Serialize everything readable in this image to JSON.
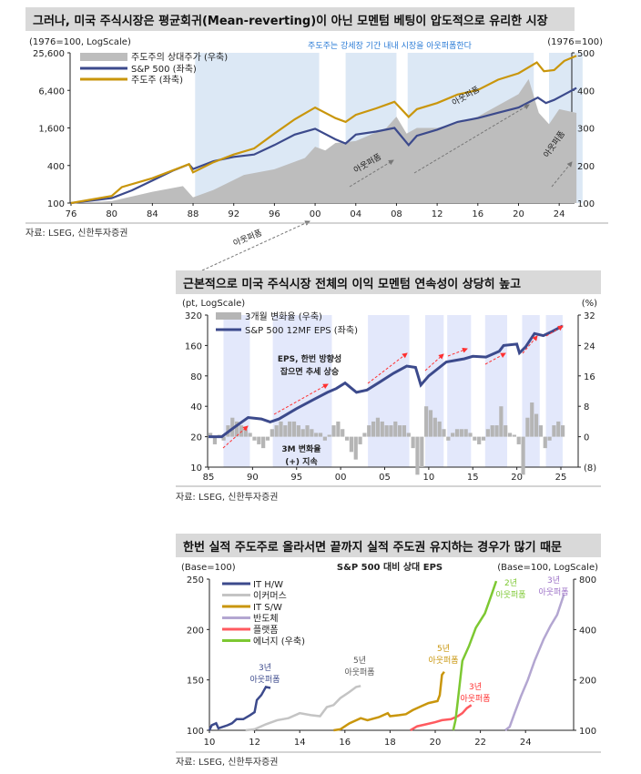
{
  "footer_source": "자료: LSEG, 신한투자증권",
  "chart_data": [
    {
      "type": "line",
      "title": "그러나, 미국 주식시장은 평균회귀(Mean-reverting)이 아닌 모멘텀 베팅이 압도적으로 유리한 시장",
      "left_unit": "(1976=100, LogScale)",
      "right_unit": "(1976=100)",
      "subtitle": "주도주는 강세장 기간 내내 시장을 아웃퍼폼한다",
      "left_ticks": [
        "100",
        "400",
        "1,600",
        "6,400",
        "25,600"
      ],
      "right_ticks": [
        "100",
        "200",
        "300",
        "400",
        "500"
      ],
      "x_ticks": [
        "76",
        "80",
        "84",
        "88",
        "92",
        "96",
        "00",
        "04",
        "08",
        "12",
        "16",
        "20",
        "24"
      ],
      "ylim_left": [
        100,
        25600
      ],
      "ylim_right": [
        100,
        500
      ],
      "xlim": [
        1976,
        2026.5
      ],
      "annotation": "아웃퍼폼",
      "shaded_periods": [
        [
          1988.2,
          2000.4
        ],
        [
          2003.0,
          2008.0
        ],
        [
          2009.1,
          2021.5
        ],
        [
          2023.0,
          2026.3
        ]
      ],
      "series": [
        {
          "name": "주도주의 상대주가 (우축)",
          "axis": "right",
          "kind": "area",
          "color": "#bdbdbd",
          "x": [
            1976,
            1980,
            1984,
            1987,
            1988,
            1990,
            1993,
            1996,
            1999,
            2000,
            2001,
            2002,
            2004,
            2007,
            2008,
            2009,
            2010,
            2012,
            2016,
            2018,
            2020,
            2021,
            2022,
            2023,
            2024,
            2025.7
          ],
          "y": [
            100,
            105,
            130,
            145,
            115,
            135,
            175,
            190,
            220,
            250,
            240,
            260,
            265,
            300,
            330,
            285,
            300,
            300,
            330,
            360,
            390,
            430,
            340,
            310,
            350,
            340
          ]
        },
        {
          "name": "S&P 500 (좌축)",
          "axis": "left",
          "kind": "line",
          "color": "#3c4a8c",
          "x": [
            1976,
            1980,
            1982,
            1984,
            1986,
            1987.6,
            1988,
            1990,
            1992,
            1994,
            1996,
            1998,
            2000,
            2002,
            2003,
            2004,
            2006,
            2007.8,
            2009.2,
            2010,
            2012,
            2014,
            2016,
            2018,
            2020,
            2021.9,
            2022.7,
            2023.5,
            2024.5,
            2025.7
          ],
          "y": [
            100,
            120,
            160,
            230,
            330,
            420,
            350,
            470,
            550,
            600,
            850,
            1250,
            1550,
            1050,
            900,
            1250,
            1400,
            1600,
            850,
            1200,
            1500,
            2000,
            2300,
            2800,
            3400,
            4900,
            4000,
            4500,
            5500,
            7000
          ]
        },
        {
          "name": "주도주 (좌축)",
          "axis": "left",
          "kind": "line",
          "color": "#c9960c",
          "x": [
            1976,
            1980,
            1981,
            1984,
            1987.6,
            1988,
            1990,
            1992,
            1994,
            1996,
            1998,
            2000,
            2002,
            2003,
            2004,
            2006,
            2007.8,
            2009.2,
            2010,
            2012,
            2014,
            2016,
            2018,
            2020,
            2021.8,
            2022.5,
            2023.5,
            2024.5,
            2025.7
          ],
          "y": [
            100,
            130,
            180,
            250,
            420,
            310,
            450,
            600,
            750,
            1300,
            2200,
            3400,
            2300,
            2000,
            2600,
            3300,
            4200,
            2400,
            3200,
            4000,
            5500,
            6500,
            9500,
            12000,
            18000,
            13000,
            13500,
            19000,
            23000
          ]
        }
      ]
    },
    {
      "type": "line",
      "title": "근본적으로 미국 주식시장 전체의 이익 모멘텀 연속성이 상당히 높고",
      "left_unit": "(pt, LogScale)",
      "right_unit": "(%)",
      "left_ticks": [
        "10",
        "20",
        "40",
        "80",
        "160",
        "320"
      ],
      "right_ticks": [
        "(8)",
        "0",
        "8",
        "16",
        "24",
        "32"
      ],
      "x_ticks": [
        "85",
        "90",
        "95",
        "00",
        "05",
        "10",
        "15",
        "20",
        "25"
      ],
      "ylim_left": [
        10,
        320
      ],
      "ylim_right": [
        -8,
        32
      ],
      "xlim": [
        1985,
        2027
      ],
      "annotations": [
        "EPS, 한번 방향성",
        "잡으면 추세 상승",
        "3M 변화율",
        "(+) 지속"
      ],
      "shaded_periods": [
        [
          1986.7,
          1989.7
        ],
        [
          1992.3,
          1999.0
        ],
        [
          2003.1,
          2007.8
        ],
        [
          2009.6,
          2011.7
        ],
        [
          2012.1,
          2014.8
        ],
        [
          2016.4,
          2018.9
        ],
        [
          2020.6,
          2022.6
        ],
        [
          2023.3,
          2025.2
        ]
      ],
      "series": [
        {
          "name": "3개월 변화율 (우축)",
          "axis": "right",
          "kind": "bar",
          "color": "#b5b5b5",
          "x_start": 1985,
          "x_step": 0.5,
          "y": [
            1,
            -2,
            0.5,
            -1,
            3,
            5,
            4,
            3,
            2,
            1,
            -1,
            -2,
            -3,
            -1,
            2,
            3,
            4,
            3,
            4,
            4,
            3,
            2,
            3,
            2,
            1,
            1,
            -1,
            0.5,
            3,
            4,
            2,
            -1,
            -4,
            -6,
            -2,
            1,
            3,
            4,
            5,
            4,
            3,
            3,
            4,
            3,
            3,
            1,
            -3,
            -10,
            -8,
            8,
            7,
            5,
            4,
            2,
            -1,
            1,
            2,
            2,
            2,
            1,
            -1,
            -2,
            -1,
            2,
            3,
            3,
            8,
            3,
            1,
            0.5,
            -2,
            -10,
            5,
            9,
            6,
            3,
            -3,
            -1,
            3,
            4,
            3
          ]
        },
        {
          "name": "S&P 500 12MF EPS (좌축)",
          "axis": "left",
          "kind": "line",
          "color": "#3c4a8c",
          "x": [
            1985,
            1986.5,
            1988,
            1989.5,
            1991,
            1992,
            1993,
            1995,
            1997,
            1998.5,
            1999.5,
            2000.5,
            2001.8,
            2003,
            2004.5,
            2006,
            2007.5,
            2008.5,
            2009.1,
            2010,
            2012,
            2014,
            2015,
            2016.5,
            2018,
            2018.5,
            2020,
            2020.3,
            2021,
            2022,
            2023,
            2024,
            2025.2
          ],
          "y": [
            20,
            20,
            25,
            31,
            30,
            28,
            30,
            38,
            47,
            55,
            60,
            68,
            55,
            58,
            70,
            85,
            100,
            97,
            65,
            80,
            110,
            118,
            125,
            123,
            140,
            160,
            165,
            135,
            155,
            210,
            200,
            220,
            250
          ]
        }
      ]
    },
    {
      "type": "line",
      "title": "한번 실적 주도주로 올라서면 끝까지 실적 주도권 유지하는 경우가 많기 때문",
      "subtitle": "S&P 500 대비 상대 EPS",
      "left_unit": "(Base=100)",
      "right_unit": "(Base=100, LogScale)",
      "left_ticks": [
        "100",
        "150",
        "200",
        "250"
      ],
      "right_ticks": [
        "100",
        "200",
        "400",
        "800"
      ],
      "x_ticks": [
        "10",
        "12",
        "14",
        "16",
        "18",
        "20",
        "22",
        "24"
      ],
      "ylim_left": [
        100,
        250
      ],
      "ylim_right": [
        100,
        800
      ],
      "xlim": [
        2010,
        2026.2
      ],
      "series": [
        {
          "name": "IT H/W",
          "axis": "left",
          "color": "#3c4a8c",
          "label": [
            "3년",
            "아웃퍼폼"
          ],
          "x": [
            10,
            10.1,
            10.3,
            10.4,
            10.8,
            11,
            11.2,
            11.5,
            11.8,
            12,
            12.1,
            12.3,
            12.5,
            12.7
          ],
          "y": [
            100,
            105,
            107,
            102,
            105,
            107,
            111,
            111,
            115,
            118,
            130,
            135,
            143,
            142
          ]
        },
        {
          "name": "이커머스",
          "axis": "left",
          "color": "#c4c4c4",
          "label": [
            "5년",
            "아웃퍼폼"
          ],
          "x": [
            11.6,
            12,
            12.5,
            13,
            13.5,
            14,
            14.5,
            14.9,
            15.2,
            15.5,
            15.8,
            16.2,
            16.5,
            16.7
          ],
          "y": [
            100,
            101,
            106,
            110,
            112,
            117,
            115,
            114,
            123,
            125,
            132,
            138,
            143,
            144
          ]
        },
        {
          "name": "IT S/W",
          "axis": "left",
          "color": "#c9960c",
          "label": [
            "5년",
            "아웃퍼폼"
          ],
          "x": [
            15.5,
            15.8,
            16.2,
            16.7,
            17,
            17.5,
            17.9,
            18,
            18.4,
            18.7,
            19,
            19.4,
            19.7,
            20.1,
            20.2,
            20.3,
            20.4
          ],
          "y": [
            100,
            101,
            107,
            112,
            110,
            113,
            117,
            114,
            115,
            116,
            120,
            124,
            127,
            129,
            135,
            155,
            158
          ]
        },
        {
          "name": "반도체",
          "axis": "right",
          "color": "#b3a6d1",
          "label": [
            "3년",
            "아웃퍼폼"
          ],
          "x": [
            23.1,
            23.3,
            23.5,
            23.8,
            24.1,
            24.4,
            24.8,
            25.1,
            25.4,
            25.7
          ],
          "y": [
            100,
            105,
            125,
            160,
            200,
            260,
            350,
            420,
            490,
            650
          ]
        },
        {
          "name": "플랫폼",
          "axis": "left",
          "color": "#ff5a5f",
          "label": [
            "3년",
            "아웃퍼폼"
          ],
          "x": [
            18.9,
            19.2,
            19.6,
            20,
            20.3,
            20.7,
            21,
            21.2,
            21.4,
            21.6
          ],
          "y": [
            100,
            104,
            106,
            108,
            110,
            111,
            114,
            117,
            122,
            125
          ]
        },
        {
          "name": "에너지 (우축)",
          "axis": "right",
          "color": "#7dc832",
          "label": [
            "2년",
            "아웃퍼폼"
          ],
          "x": [
            20.8,
            20.9,
            21.0,
            21.2,
            21.5,
            21.8,
            22.2,
            22.5,
            22.7
          ],
          "y": [
            100,
            115,
            150,
            260,
            320,
            410,
            500,
            650,
            780
          ]
        }
      ]
    }
  ]
}
